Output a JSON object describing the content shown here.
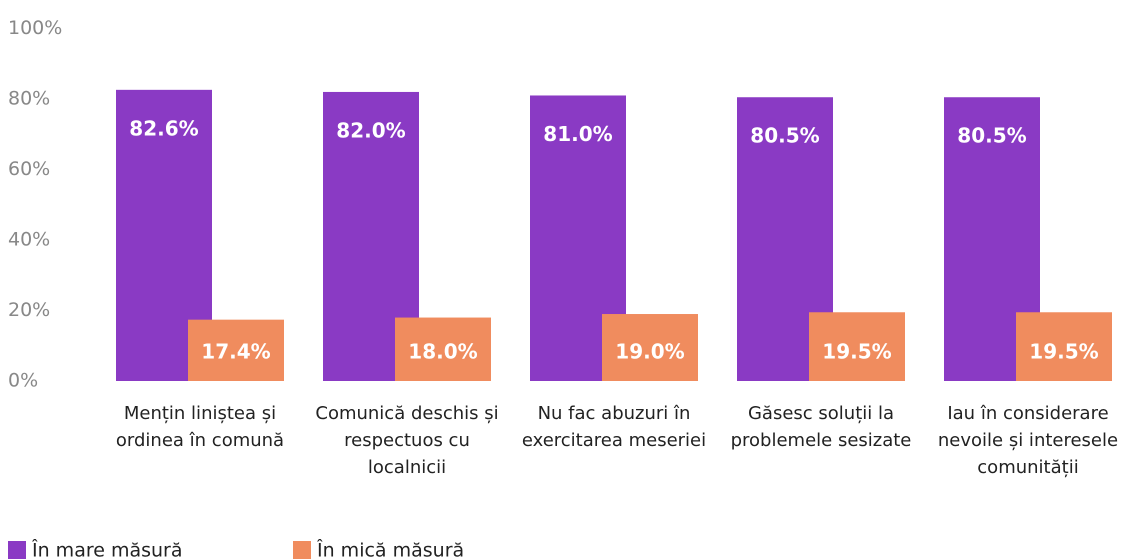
{
  "chart_data": {
    "type": "bar",
    "categories": [
      "Mențin liniștea și ordinea în comună",
      "Comunică deschis și respectuos cu localnicii",
      "Nu fac abuzuri în exercitarea meseriei",
      "Găsesc soluții la problemele sesizate",
      "Iau în considerare nevoile și interesele comunității"
    ],
    "series": [
      {
        "name": "În mare măsură",
        "color": "#8a3ac4",
        "values": [
          82.6,
          82.0,
          81.0,
          80.5,
          80.5
        ],
        "value_labels": [
          "82.6%",
          "82.0%",
          "81.0%",
          "80.5%",
          "80.5%"
        ]
      },
      {
        "name": "În mică măsură",
        "color": "#f08c5e",
        "values": [
          17.4,
          18.0,
          19.0,
          19.5,
          19.5
        ],
        "value_labels": [
          "17.4%",
          "18.0%",
          "19.0%",
          "19.5%",
          "19.5%"
        ]
      }
    ],
    "ylim": [
      0,
      100
    ],
    "yticks": [
      {
        "value": 0,
        "label": "0%"
      },
      {
        "value": 20,
        "label": "20%"
      },
      {
        "value": 40,
        "label": "40%"
      },
      {
        "value": 60,
        "label": "60%"
      },
      {
        "value": 80,
        "label": "80%"
      },
      {
        "value": 100,
        "label": "100%"
      }
    ],
    "grid": false
  }
}
